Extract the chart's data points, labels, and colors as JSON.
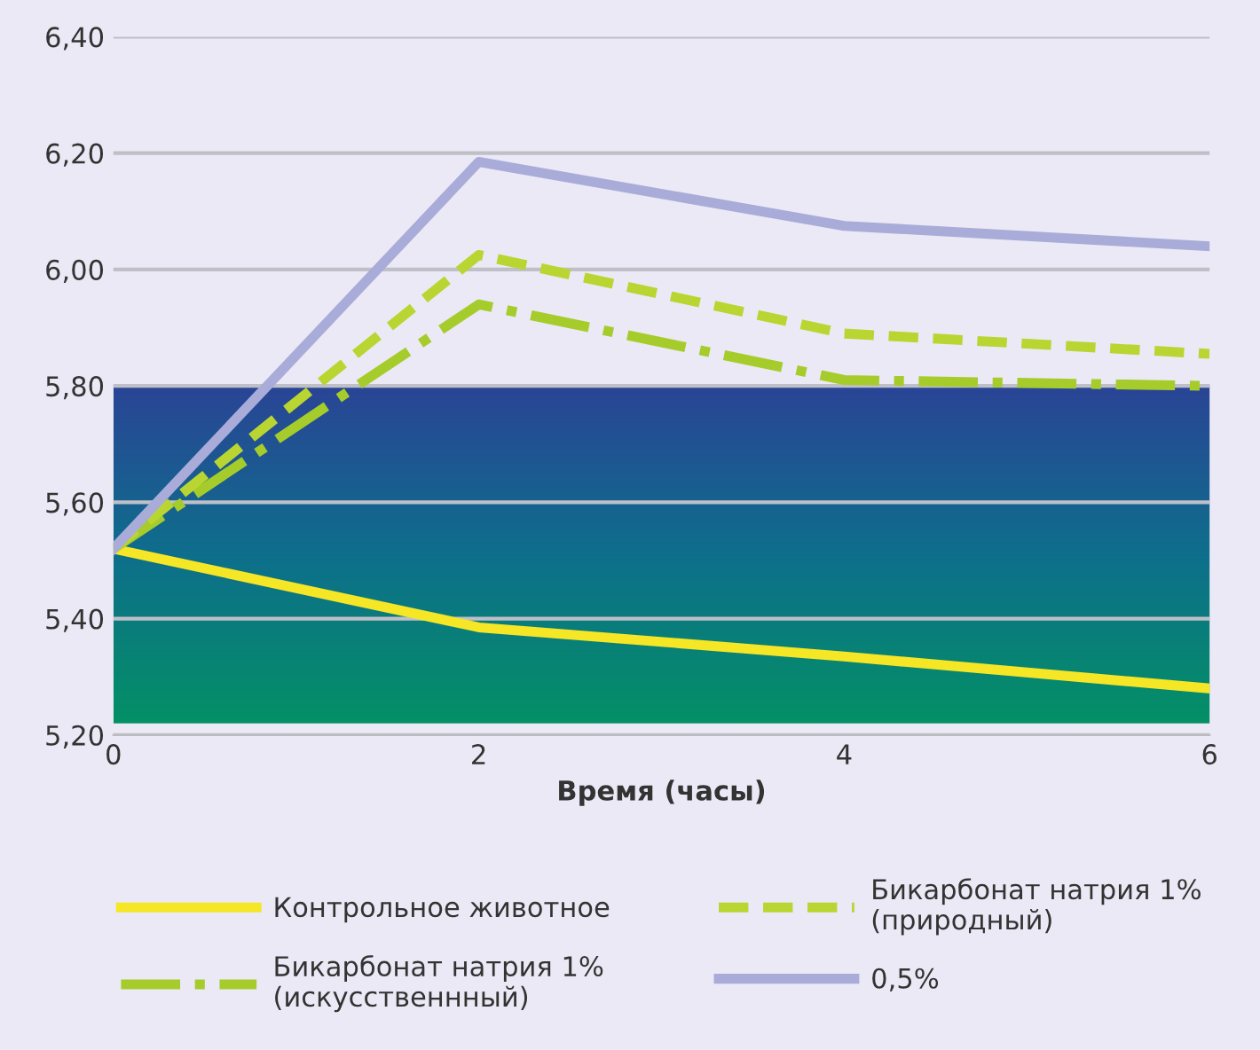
{
  "chart_data": {
    "type": "line",
    "xlabel": "Время (часы)",
    "x": [
      0,
      2,
      4,
      6
    ],
    "series": [
      {
        "name": "Контрольное животное",
        "color": "#f5e626",
        "line_style": "solid",
        "values": [
          5.52,
          5.385,
          5.335,
          5.28
        ]
      },
      {
        "name": "Бикарбонат натрия 1%\n(искусственнный)",
        "color": "#a6cc2c",
        "line_style": "dashdot",
        "values": [
          5.52,
          5.94,
          5.81,
          5.8
        ]
      },
      {
        "name": "Бикарбонат натрия 1%\n(природный)",
        "color": "#b9d531",
        "line_style": "dashed",
        "values": [
          5.52,
          6.025,
          5.89,
          5.855
        ]
      },
      {
        "name": "0,5%",
        "color": "#a9acd9",
        "line_style": "solid",
        "values": [
          5.52,
          6.185,
          6.075,
          6.04
        ]
      }
    ],
    "bands": [
      {
        "axis": "y",
        "from": 5.22,
        "to": 5.8,
        "color": [
          "#2a4596",
          "#0e6f8c",
          "#049066"
        ]
      }
    ],
    "xlim": [
      0,
      6
    ],
    "ylim": [
      5.2,
      6.4
    ],
    "xticks": [
      0,
      2,
      4,
      6
    ],
    "yticks": [
      {
        "value": 5.2,
        "label": "5,20"
      },
      {
        "value": 5.4,
        "label": "5,40"
      },
      {
        "value": 5.6,
        "label": "5,60"
      },
      {
        "value": 5.8,
        "label": "5,80"
      },
      {
        "value": 6.0,
        "label": "6,00"
      },
      {
        "value": 6.2,
        "label": "6,20"
      },
      {
        "value": 6.4,
        "label": "6,40"
      }
    ],
    "grid": "y",
    "legend": "bottom",
    "marker": "none"
  }
}
